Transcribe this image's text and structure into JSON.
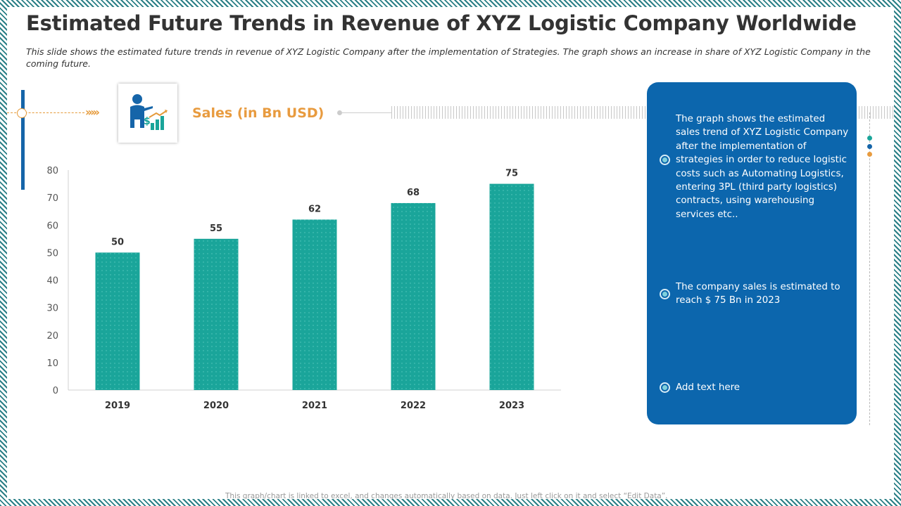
{
  "slide": {
    "title": "Estimated Future Trends in Revenue of XYZ Logistic Company Worldwide",
    "subtitle": "This slide shows the estimated future trends in revenue of XYZ Logistic Company after the implementation of Strategies. The graph shows an increase in share of XYZ Logistic Company in the coming future.",
    "footer": "This graph/chart is linked to excel, and changes automatically based on data. Just left click on it and select “Edit Data”."
  },
  "icon": {
    "name": "businessman-growth-chart-icon"
  },
  "colors": {
    "bar": "#1aa59a",
    "accent": "#e89b3f",
    "panel": "#0c66ad",
    "text": "#333333"
  },
  "chart_data": {
    "type": "bar",
    "title": "Sales (in Bn USD)",
    "categories": [
      "2019",
      "2020",
      "2021",
      "2022",
      "2023"
    ],
    "values": [
      50,
      55,
      62,
      68,
      75
    ],
    "ylim": [
      0,
      80
    ],
    "yticks": [
      0,
      10,
      20,
      30,
      40,
      50,
      60,
      70,
      80
    ],
    "xlabel": "",
    "ylabel": "",
    "grid": false
  },
  "panel": {
    "points": [
      "The graph shows the estimated sales trend of XYZ Logistic Company after the implementation of strategies in order to reduce logistic costs such as Automating Logistics, entering 3PL (third party logistics) contracts, using warehousing services etc..",
      "The company sales is estimated to reach $ 75 Bn in 2023",
      "Add text here"
    ]
  }
}
